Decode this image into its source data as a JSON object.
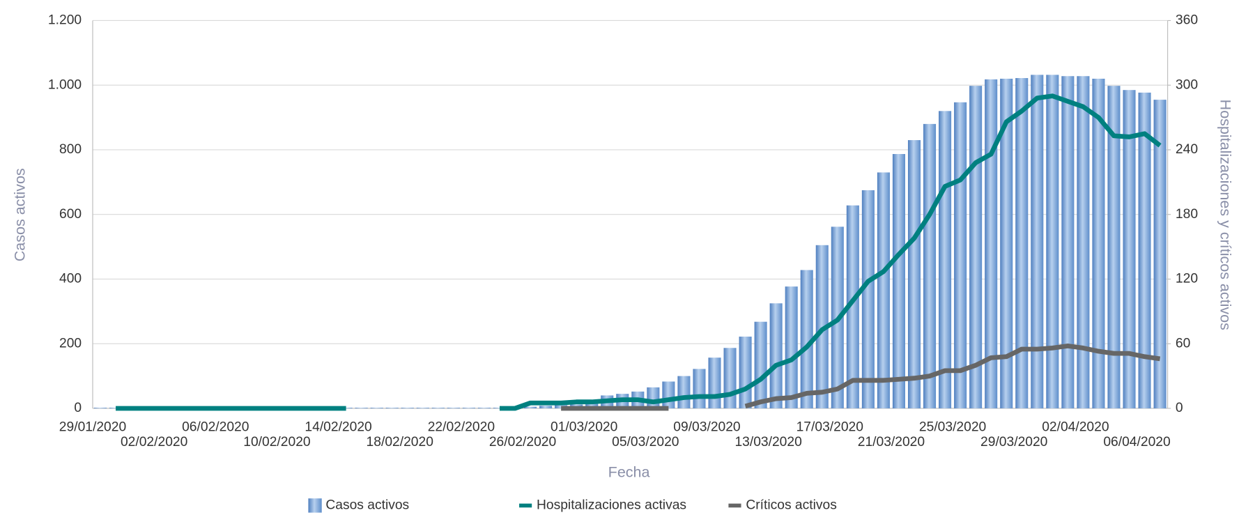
{
  "chart_data": {
    "type": "bar-line",
    "xlabel": "Fecha",
    "ylabel": "Casos activos",
    "y2label": "Hospitalizaciones y críticos activos",
    "categories": [
      "29/01/2020",
      null,
      null,
      null,
      "02/02/2020",
      null,
      null,
      null,
      "06/02/2020",
      null,
      null,
      null,
      "10/02/2020",
      null,
      null,
      null,
      "14/02/2020",
      null,
      null,
      null,
      "18/02/2020",
      null,
      null,
      null,
      "22/02/2020",
      null,
      null,
      null,
      "26/02/2020",
      null,
      null,
      null,
      "01/03/2020",
      null,
      null,
      null,
      "05/03/2020",
      null,
      null,
      null,
      "09/03/2020",
      null,
      null,
      null,
      "13/03/2020",
      null,
      null,
      null,
      "17/03/2020",
      null,
      null,
      null,
      "21/03/2020",
      null,
      null,
      null,
      "25/03/2020",
      null,
      null,
      null,
      "29/03/2020",
      null,
      null,
      null,
      "02/04/2020",
      null,
      null,
      null,
      "06/04/2020",
      null
    ],
    "ylim": [
      0,
      1200
    ],
    "yticks": [
      0,
      200,
      400,
      600,
      800,
      {
        "value": 1000,
        "label": "1.000"
      },
      {
        "value": 1200,
        "label": "1.200"
      }
    ],
    "y2lim": [
      0,
      360
    ],
    "y2ticks": [
      0,
      60,
      120,
      180,
      240,
      300,
      360
    ],
    "grid": true,
    "series": [
      {
        "name": "Casos activos",
        "type": "bar",
        "color": "#7aa6d9",
        "values": [
          2,
          2,
          2,
          2,
          2,
          2,
          2,
          2,
          2,
          2,
          2,
          2,
          2,
          2,
          2,
          2,
          2,
          2,
          2,
          2,
          2,
          2,
          2,
          2,
          2,
          2,
          2,
          5,
          5,
          8,
          10,
          12,
          20,
          40,
          45,
          52,
          65,
          83,
          100,
          122,
          157,
          187,
          222,
          268,
          325,
          377,
          428,
          505,
          562,
          628,
          675,
          730,
          787,
          830,
          880,
          920,
          947,
          998,
          1018,
          1020,
          1022,
          1032,
          1032,
          1028,
          1028,
          1020,
          998,
          985,
          977,
          955
        ]
      },
      {
        "name": "Hospitalizaciones activas",
        "type": "line",
        "axis": "y2",
        "color": "#008080",
        "values": [
          null,
          0,
          0,
          0,
          0,
          0,
          0,
          0,
          0,
          0,
          0,
          0,
          0,
          0,
          0,
          0,
          0,
          null,
          null,
          null,
          null,
          null,
          null,
          null,
          null,
          null,
          0,
          0,
          5,
          5,
          5,
          6,
          6,
          7,
          8,
          8,
          6,
          8,
          10,
          11,
          11,
          13,
          18,
          27,
          40,
          45,
          57,
          73,
          82,
          100,
          118,
          127,
          143,
          158,
          180,
          206,
          212,
          228,
          236,
          266,
          276,
          288,
          290,
          285,
          280,
          270,
          253,
          252,
          255,
          244
        ]
      },
      {
        "name": "Críticos activos",
        "type": "line",
        "axis": "y2",
        "color": "#666666",
        "values": [
          null,
          null,
          null,
          null,
          null,
          null,
          null,
          null,
          null,
          null,
          null,
          null,
          null,
          null,
          null,
          null,
          null,
          null,
          null,
          null,
          null,
          null,
          null,
          null,
          null,
          null,
          null,
          null,
          null,
          null,
          0,
          0,
          0,
          0,
          0,
          0,
          0,
          0,
          null,
          null,
          null,
          null,
          2,
          6,
          9,
          10,
          14,
          15,
          18,
          26,
          26,
          26,
          27,
          28,
          30,
          35,
          35,
          40,
          47,
          48,
          55,
          55,
          56,
          58,
          56,
          53,
          51,
          51,
          48,
          46
        ]
      }
    ]
  }
}
